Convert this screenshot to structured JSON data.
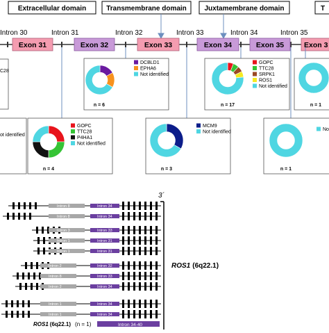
{
  "domains": [
    {
      "label": "Extracellular domain"
    },
    {
      "label": "Transmembrane domain"
    },
    {
      "label": "Juxtamembrane domain"
    },
    {
      "label": "T"
    }
  ],
  "introns": [
    "Intron 30",
    "Intron 31",
    "Intron 32",
    "Intron 33",
    "Intron 34",
    "Intron 35"
  ],
  "exons": [
    "Exon 31",
    "Exon 32",
    "Exon 33",
    "Exon 34",
    "Exon 35",
    "Exon 3"
  ],
  "colors": {
    "gopc": "#e8141c",
    "ttc28": "#35c435",
    "p4ha1": "#111111",
    "dcbld1": "#6a1aa0",
    "epha6": "#f7921e",
    "mcm9": "#0c1d8a",
    "srpk1": "#9a4a24",
    "ros1": "#f5ea22",
    "not_identified": "#4fd6e2",
    "exon_pink": "#f49cb0",
    "exon_purple": "#c89ad8",
    "intron_grey": "#a8a8a8",
    "intron_purple": "#6b3fa0"
  },
  "panels": [
    {
      "id": "intron31",
      "n": "n = 4",
      "legend": [
        "GOPC",
        "TTC28",
        "P4HA1",
        "Not identified"
      ],
      "slices": [
        {
          "label": "GOPC",
          "value": 1
        },
        {
          "label": "TTC28",
          "value": 1
        },
        {
          "label": "P4HA1",
          "value": 1
        },
        {
          "label": "Not identified",
          "value": 1
        }
      ]
    },
    {
      "id": "intron32",
      "n": "n = 6",
      "legend": [
        "DCBLD1",
        "EPHA6",
        "Not identified"
      ],
      "slices": [
        {
          "label": "DCBLD1",
          "value": 1
        },
        {
          "label": "EPHA6",
          "value": 1
        },
        {
          "label": "Not identified",
          "value": 4
        }
      ]
    },
    {
      "id": "intron33",
      "n": "n = 3",
      "legend": [
        "MCM9",
        "Not identified"
      ],
      "slices": [
        {
          "label": "MCM9",
          "value": 1
        },
        {
          "label": "Not identified",
          "value": 2
        }
      ]
    },
    {
      "id": "intron34",
      "n": "n = 17",
      "legend": [
        "GOPC",
        "TTC28",
        "SRPK1",
        "ROS1",
        "Not identified"
      ],
      "slices": [
        {
          "label": "GOPC",
          "value": 1
        },
        {
          "label": "TTC28",
          "value": 1
        },
        {
          "label": "SRPK1",
          "value": 1
        },
        {
          "label": "ROS1",
          "value": 1
        },
        {
          "label": "Not identified",
          "value": 13
        }
      ]
    },
    {
      "id": "intron35",
      "n": "n = 1",
      "legend": [
        "Not identified"
      ],
      "slices": [
        {
          "label": "Not identified",
          "value": 1
        }
      ]
    },
    {
      "id": "intron35b",
      "n": "n = 1",
      "legend": [],
      "slices": [
        {
          "label": "Not identified",
          "value": 1
        }
      ]
    }
  ],
  "left_partial": {
    "label_top": "C28",
    "label_mid": "ot identified"
  },
  "bottom": {
    "three_prime": "3´",
    "gene_label": "ROS1",
    "gene_locus": "(6q22.1)",
    "bottom_gene": "ROS1",
    "bottom_locus": "(6q22.1)",
    "bottom_n": "(n = 1)",
    "bottom_intron": "Intron 34-40",
    "tracks": [
      {
        "grey": "Intron 8",
        "purple": "Intron 34"
      },
      {
        "grey": "Intron 8",
        "purple": "Intron 34"
      },
      {
        "grey": "Intron 3",
        "purple": "Intron 33"
      },
      {
        "grey": "Intron 1",
        "purple": "Intron 31"
      },
      {
        "grey": "Intron 1",
        "purple": "Intron 31"
      },
      {
        "grey": "Intron 2",
        "purple": "Intron 32"
      },
      {
        "grey": "Intron 8",
        "purple": "Intron 33"
      },
      {
        "grey": "Intron 2",
        "purple": "Intron 34"
      },
      {
        "grey": "Intron 1",
        "purple": "Intron 34"
      },
      {
        "grey": "Intron 1",
        "purple": "Intron 34"
      }
    ]
  }
}
